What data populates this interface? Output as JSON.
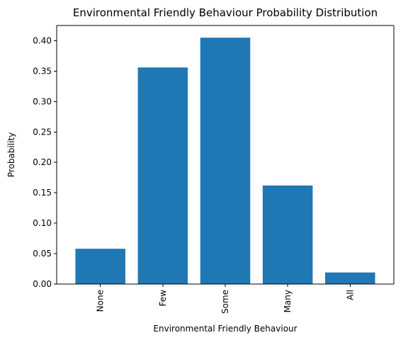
{
  "chart_data": {
    "type": "bar",
    "title": "Environmental Friendly Behaviour Probability Distribution",
    "xlabel": "Environmental Friendly Behaviour",
    "ylabel": "Probability",
    "categories": [
      "None",
      "Few",
      "Some",
      "Many",
      "All"
    ],
    "values": [
      0.058,
      0.356,
      0.405,
      0.162,
      0.019
    ],
    "ylim": [
      0,
      0.425
    ],
    "yticks": [
      0.0,
      0.05,
      0.1,
      0.15,
      0.2,
      0.25,
      0.3,
      0.35,
      0.4
    ],
    "ytick_labels": [
      "0.00",
      "0.05",
      "0.10",
      "0.15",
      "0.20",
      "0.25",
      "0.30",
      "0.35",
      "0.40"
    ],
    "grid": false,
    "legend": "none",
    "bar_color": "#1f77b4"
  }
}
